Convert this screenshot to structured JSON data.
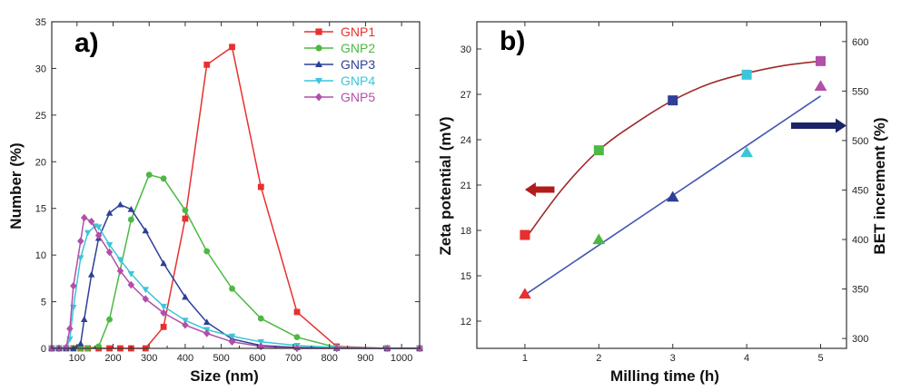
{
  "chart_data": [
    {
      "type": "line",
      "panel_label": "a)",
      "xlabel": "Size (nm)",
      "ylabel": "Number (%)",
      "xlim": [
        30,
        1050
      ],
      "ylim": [
        0,
        35
      ],
      "xticks": [
        100,
        200,
        300,
        400,
        500,
        600,
        700,
        800,
        900,
        1000
      ],
      "yticks": [
        0,
        5,
        10,
        15,
        20,
        25,
        30,
        35
      ],
      "grid": false,
      "legend_position": "top-right",
      "series": [
        {
          "name": "GNP1",
          "color": "#e8302e",
          "marker": "square",
          "x": [
            30,
            50,
            70,
            90,
            110,
            130,
            160,
            190,
            220,
            250,
            290,
            340,
            400,
            460,
            530,
            610,
            710,
            820,
            960,
            1050
          ],
          "y": [
            0,
            0,
            0,
            0,
            0,
            0,
            0,
            0,
            0,
            0,
            0,
            2.3,
            13.9,
            30.4,
            32.3,
            17.3,
            3.9,
            0.2,
            0,
            0
          ]
        },
        {
          "name": "GNP2",
          "color": "#4db842",
          "marker": "circle",
          "x": [
            30,
            50,
            70,
            90,
            110,
            130,
            160,
            190,
            250,
            300,
            340,
            400,
            460,
            530,
            610,
            710,
            820,
            960,
            1050
          ],
          "y": [
            0,
            0,
            0,
            0,
            0,
            0,
            0.2,
            3.1,
            13.8,
            18.6,
            18.2,
            14.8,
            10.4,
            6.4,
            3.2,
            1.2,
            0.1,
            0,
            0
          ]
        },
        {
          "name": "GNP3",
          "color": "#2e3f96",
          "marker": "triangle-up",
          "x": [
            30,
            50,
            70,
            90,
            110,
            120,
            140,
            160,
            190,
            220,
            250,
            290,
            340,
            400,
            460,
            530,
            610,
            710,
            820,
            960,
            1050
          ],
          "y": [
            0,
            0,
            0,
            0,
            0.5,
            3.1,
            7.9,
            11.8,
            14.5,
            15.4,
            14.9,
            12.6,
            9.1,
            5.5,
            2.8,
            1.0,
            0.3,
            0.1,
            0,
            0,
            0
          ]
        },
        {
          "name": "GNP4",
          "color": "#3cc5d8",
          "marker": "triangle-down",
          "x": [
            30,
            50,
            70,
            80,
            90,
            110,
            130,
            150,
            160,
            190,
            220,
            250,
            290,
            340,
            400,
            460,
            530,
            610,
            710,
            820,
            960,
            1050
          ],
          "y": [
            0,
            0,
            0,
            1.0,
            4.4,
            9.7,
            12.4,
            13.1,
            13.0,
            11.1,
            9.5,
            8.0,
            6.3,
            4.5,
            3.0,
            2.0,
            1.3,
            0.7,
            0.3,
            0.1,
            0,
            0
          ]
        },
        {
          "name": "GNP5",
          "color": "#b24fa8",
          "marker": "diamond",
          "x": [
            30,
            50,
            70,
            80,
            90,
            110,
            120,
            140,
            160,
            190,
            220,
            250,
            290,
            340,
            400,
            460,
            530,
            610,
            710,
            820,
            960,
            1050
          ],
          "y": [
            0,
            0,
            0.1,
            2.1,
            6.7,
            11.5,
            14.0,
            13.6,
            12.1,
            10.3,
            8.3,
            6.8,
            5.3,
            3.8,
            2.5,
            1.6,
            0.7,
            0.2,
            0,
            0,
            0,
            0
          ]
        }
      ]
    },
    {
      "type": "scatter",
      "panel_label": "b)",
      "xlabel": "Milling time (h)",
      "ylabel": "Zeta potential (mV)",
      "ylabel_right": "BET increment (%)",
      "xlim": [
        0.35,
        5.35
      ],
      "ylim_left": [
        10.2,
        31.8
      ],
      "ylim_right": [
        290,
        620
      ],
      "xticks": [
        1,
        2,
        3,
        4,
        5
      ],
      "yticks_left": [
        12,
        15,
        18,
        21,
        24,
        27,
        30
      ],
      "yticks_right": [
        300,
        350,
        400,
        450,
        500,
        550,
        600
      ],
      "grid": false,
      "points": {
        "x": [
          1,
          2,
          3,
          4,
          5
        ],
        "zeta_potential": [
          17.7,
          23.3,
          26.6,
          28.3,
          29.2
        ],
        "bet_increment": [
          345,
          400,
          443,
          488,
          555
        ],
        "colors": [
          "#e8302e",
          "#4db842",
          "#2e3f96",
          "#3cc5d8",
          "#b24fa8"
        ]
      },
      "fits": [
        {
          "axis": "left",
          "color": "#9e2a2a",
          "x": [
            1,
            1.5,
            2,
            2.5,
            3,
            3.5,
            4,
            4.5,
            5
          ],
          "y": [
            17.4,
            20.7,
            23.3,
            25.1,
            26.6,
            27.7,
            28.4,
            28.9,
            29.2
          ]
        },
        {
          "axis": "right",
          "color": "#4454b0",
          "x": [
            1,
            5
          ],
          "y": [
            344,
            545
          ]
        }
      ],
      "arrows": [
        {
          "axis": "left",
          "direction": "left",
          "color": "#b21c1c",
          "x": [
            1.0,
            1.4
          ],
          "y": 20.7
        },
        {
          "axis": "right",
          "direction": "right",
          "color": "#1c2468",
          "x": [
            4.6,
            5.35
          ],
          "y": 515
        }
      ]
    }
  ]
}
